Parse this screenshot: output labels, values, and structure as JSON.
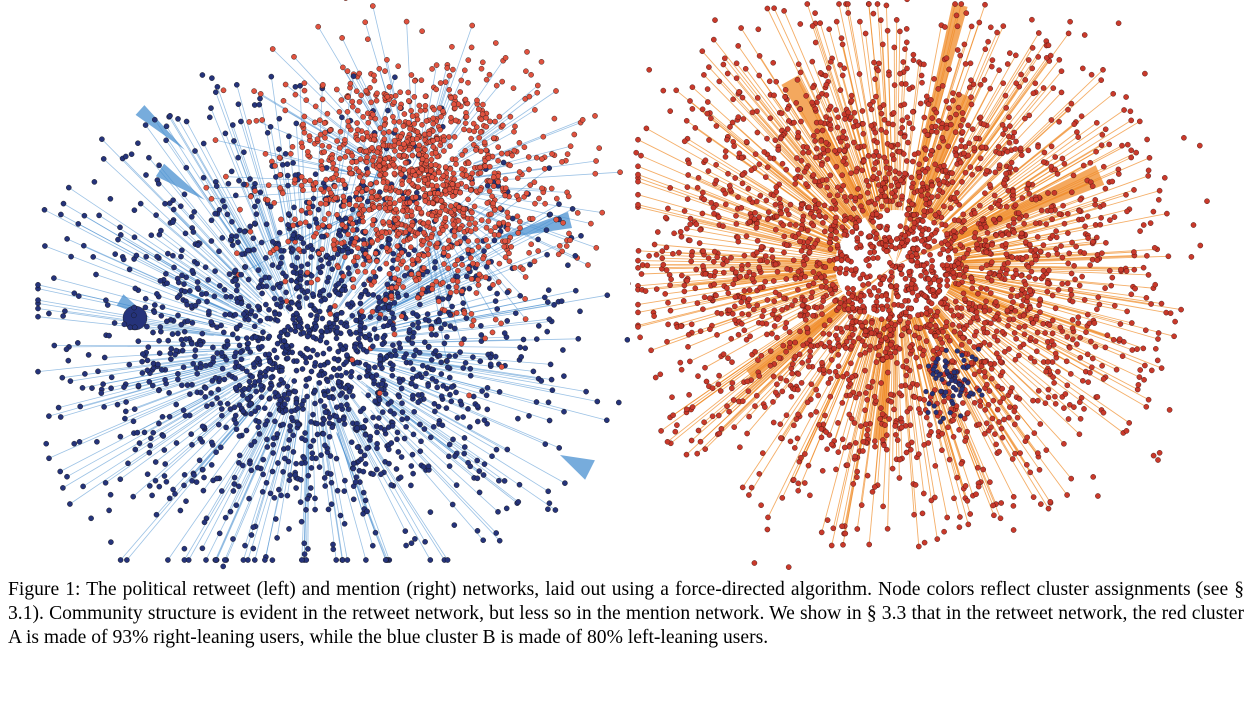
{
  "figure": {
    "caption_text": "Figure 1: The political retweet (left) and mention (right) networks, laid out using a force-directed algorithm. Node colors reflect cluster assignments (see § 3.1). Community structure is evident in the retweet network, but less so in the mention network. We show in § 3.3 that in the retweet network, the red cluster A is made of 93% right-leaning users, while the blue cluster B is made of 80% left-leaning users."
  },
  "retweet_network": {
    "colors": {
      "cluster_a_node": "#e0523f",
      "cluster_b_node": "#25337a",
      "node_outline": "#111111",
      "edge": "#4a90d0"
    }
  },
  "mention_network": {
    "colors": {
      "node": "#c9392b",
      "blue_node": "#25337a",
      "node_outline": "#3a0f0a",
      "edge": "#f08b28"
    }
  }
}
